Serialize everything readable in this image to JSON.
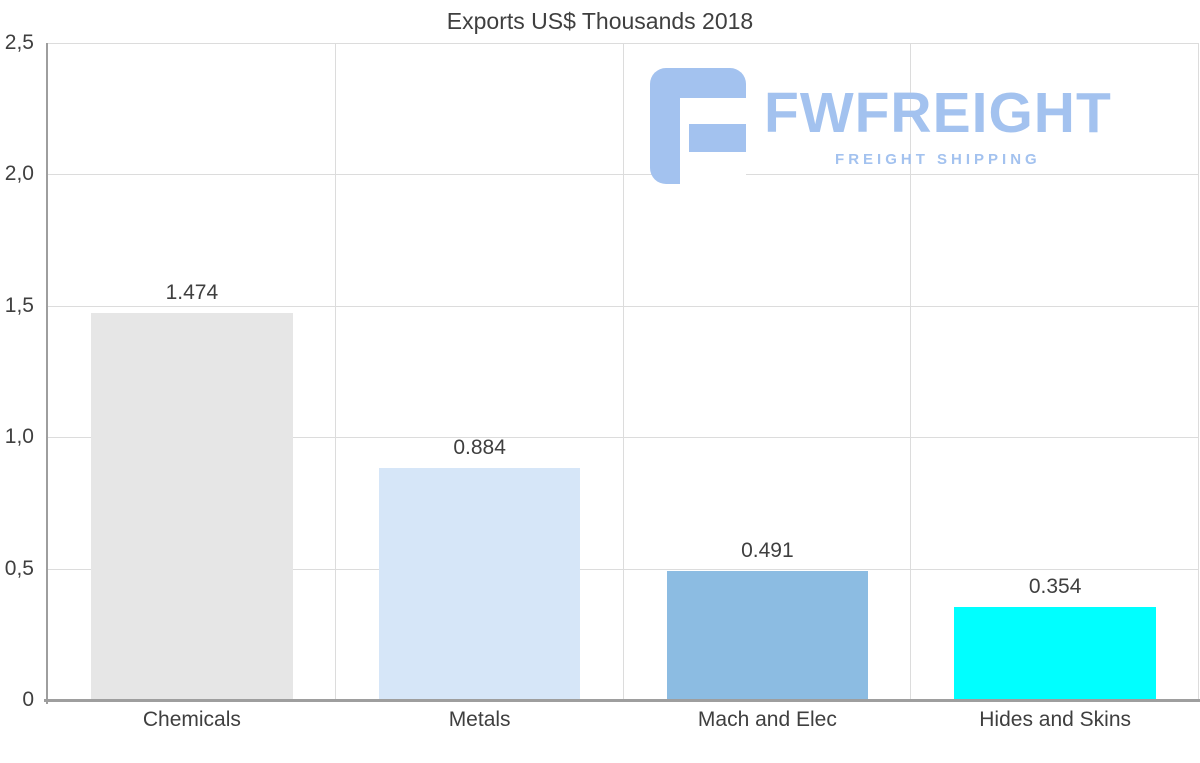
{
  "watermark": {
    "brand": "FWFREIGHT",
    "tagline": "FREIGHT SHIPPING",
    "color": "#a3c2ef"
  },
  "chart_data": {
    "type": "bar",
    "title": "Exports US$ Thousands 2018",
    "categories": [
      "Chemicals",
      "Metals",
      "Mach and Elec",
      "Hides and Skins"
    ],
    "values": [
      1.474,
      0.884,
      0.491,
      0.354
    ],
    "value_labels": [
      "1.474",
      "0.884",
      "0.491",
      "0.354"
    ],
    "bar_colors": [
      "#e6e6e6",
      "#d6e6f8",
      "#8cbce2",
      "#00ffff"
    ],
    "xlabel": "",
    "ylabel": "",
    "ylim": [
      0,
      2.5
    ],
    "yticks": [
      0,
      0.5,
      1.0,
      1.5,
      2.0,
      2.5
    ],
    "ytick_labels": [
      "0",
      "0,5",
      "1,0",
      "1,5",
      "2,0",
      "2,5"
    ],
    "grid": true,
    "legend": "none",
    "text_color": "#3f3f3f",
    "grid_color": "#dcdcdc",
    "axis_color": "#9e9e9e"
  }
}
